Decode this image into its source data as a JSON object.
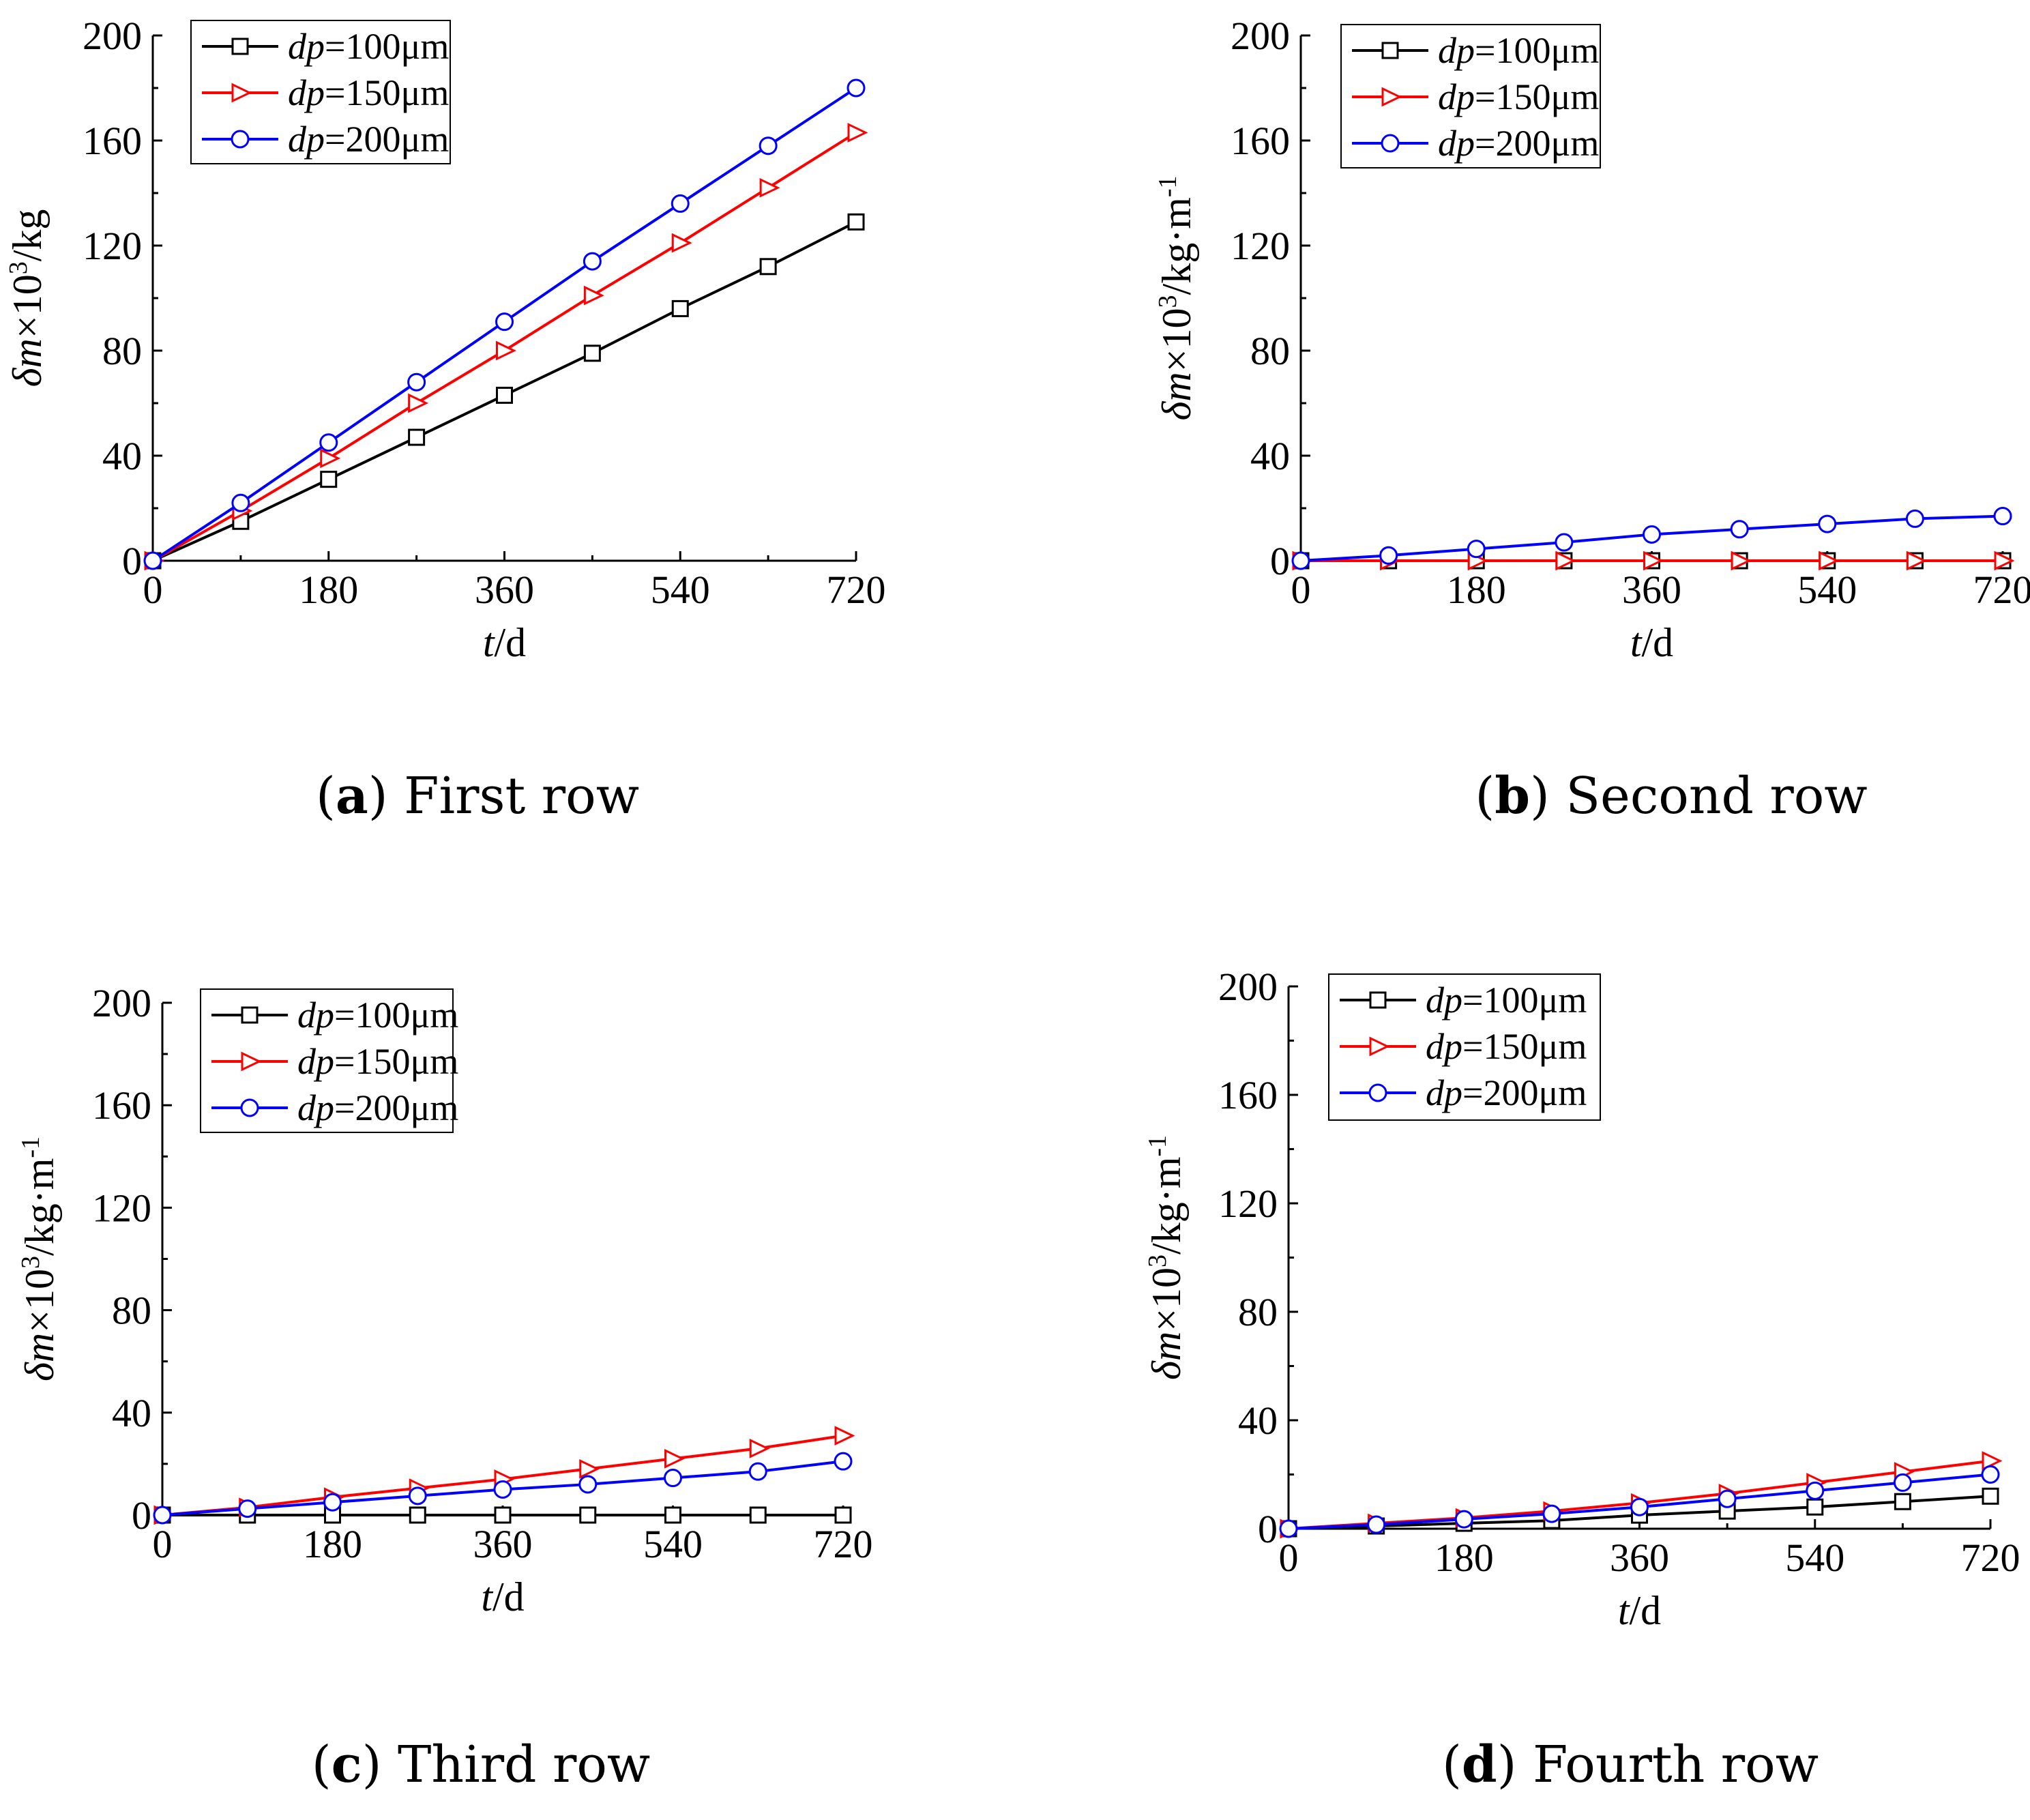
{
  "chart_data": [
    {
      "type": "line",
      "panel": "a",
      "caption_letter": "a",
      "caption_text": ") First row",
      "caption_open": "(",
      "xlabel_italic": "t",
      "xlabel_rest": "/d",
      "ylabel_delta": "δ",
      "ylabel_m": "m",
      "ylabel_times": "×10",
      "ylabel_sup": "3",
      "ylabel_unit": "/kg",
      "ylabel_unit_sup": "",
      "xlim": [
        0,
        720
      ],
      "ylim": [
        0,
        200
      ],
      "xticks": [
        "0",
        "180",
        "360",
        "540",
        "720"
      ],
      "yticks": [
        "0",
        "40",
        "80",
        "120",
        "160",
        "200"
      ],
      "x": [
        0,
        90,
        180,
        270,
        360,
        450,
        540,
        630,
        720
      ],
      "series": [
        {
          "name_italic": "dp",
          "name_rest": "=100μm",
          "color": "#000000",
          "marker": "square",
          "values": [
            0,
            15,
            31,
            47,
            63,
            79,
            96,
            112,
            129
          ]
        },
        {
          "name_italic": "dp",
          "name_rest": "=150μm",
          "color": "#ff0000",
          "marker": "triangle-right",
          "values": [
            0,
            19,
            39,
            60,
            80,
            101,
            121,
            142,
            163
          ]
        },
        {
          "name_italic": "dp",
          "name_rest": "=200μm",
          "color": "#0000ff",
          "marker": "circle",
          "values": [
            0,
            22,
            45,
            68,
            91,
            114,
            136,
            158,
            180
          ]
        }
      ]
    },
    {
      "type": "line",
      "panel": "b",
      "caption_letter": "b",
      "caption_text": ") Second row",
      "caption_open": "(",
      "xlabel_italic": "t",
      "xlabel_rest": "/d",
      "ylabel_delta": "δ",
      "ylabel_m": "m",
      "ylabel_times": "×10",
      "ylabel_sup": "3",
      "ylabel_unit": "/kg·m",
      "ylabel_unit_sup": "-1",
      "xlim": [
        0,
        720
      ],
      "ylim": [
        0,
        200
      ],
      "xticks": [
        "0",
        "180",
        "360",
        "540",
        "720"
      ],
      "yticks": [
        "0",
        "40",
        "80",
        "120",
        "160",
        "200"
      ],
      "x": [
        0,
        90,
        180,
        270,
        360,
        450,
        540,
        630,
        720
      ],
      "series": [
        {
          "name_italic": "dp",
          "name_rest": "=100μm",
          "color": "#000000",
          "marker": "square",
          "values": [
            0,
            0,
            0,
            0,
            0,
            0,
            0,
            0,
            0
          ]
        },
        {
          "name_italic": "dp",
          "name_rest": "=150μm",
          "color": "#ff0000",
          "marker": "triangle-right",
          "values": [
            0,
            0,
            0,
            0,
            0,
            0,
            0,
            0,
            0
          ]
        },
        {
          "name_italic": "dp",
          "name_rest": "=200μm",
          "color": "#0000ff",
          "marker": "circle",
          "values": [
            0,
            2,
            4.5,
            7,
            10,
            12,
            14,
            16,
            17
          ]
        }
      ]
    },
    {
      "type": "line",
      "panel": "c",
      "caption_letter": "c",
      "caption_text": ") Third row",
      "caption_open": "(",
      "xlabel_italic": "t",
      "xlabel_rest": "/d",
      "ylabel_delta": "δ",
      "ylabel_m": "m",
      "ylabel_times": "×10",
      "ylabel_sup": "3",
      "ylabel_unit": "/kg·m",
      "ylabel_unit_sup": "-1",
      "xlim": [
        0,
        720
      ],
      "ylim": [
        0,
        200
      ],
      "xticks": [
        "0",
        "180",
        "360",
        "540",
        "720"
      ],
      "yticks": [
        "0",
        "40",
        "80",
        "120",
        "160",
        "200"
      ],
      "x": [
        0,
        90,
        180,
        270,
        360,
        450,
        540,
        630,
        720
      ],
      "series": [
        {
          "name_italic": "dp",
          "name_rest": "=100μm",
          "color": "#000000",
          "marker": "square",
          "values": [
            0,
            0,
            0,
            0,
            0,
            0,
            0,
            0,
            0
          ]
        },
        {
          "name_italic": "dp",
          "name_rest": "=150μm",
          "color": "#ff0000",
          "marker": "triangle-right",
          "values": [
            0,
            3,
            7,
            10.5,
            14,
            18,
            22,
            26,
            31
          ]
        },
        {
          "name_italic": "dp",
          "name_rest": "=200μm",
          "color": "#0000ff",
          "marker": "circle",
          "values": [
            0,
            2.5,
            5,
            7.5,
            10,
            12,
            14.5,
            17,
            21
          ]
        }
      ]
    },
    {
      "type": "line",
      "panel": "d",
      "caption_letter": "d",
      "caption_text": ") Fourth row",
      "caption_open": "(",
      "xlabel_italic": "t",
      "xlabel_rest": "/d",
      "ylabel_delta": "δ",
      "ylabel_m": "m",
      "ylabel_times": "×10",
      "ylabel_sup": "3",
      "ylabel_unit": "/kg·m",
      "ylabel_unit_sup": "-1",
      "xlim": [
        0,
        720
      ],
      "ylim": [
        0,
        200
      ],
      "xticks": [
        "0",
        "180",
        "360",
        "540",
        "720"
      ],
      "yticks": [
        "0",
        "40",
        "80",
        "120",
        "160",
        "200"
      ],
      "x": [
        0,
        90,
        180,
        270,
        360,
        450,
        540,
        630,
        720
      ],
      "series": [
        {
          "name_italic": "dp",
          "name_rest": "=100μm",
          "color": "#000000",
          "marker": "square",
          "values": [
            0,
            1,
            2,
            3,
            5,
            6.5,
            8,
            10,
            12
          ]
        },
        {
          "name_italic": "dp",
          "name_rest": "=150μm",
          "color": "#ff0000",
          "marker": "triangle-right",
          "values": [
            0,
            2,
            4,
            6.5,
            9.5,
            13,
            17,
            21,
            25
          ]
        },
        {
          "name_italic": "dp",
          "name_rest": "=200μm",
          "color": "#0000ff",
          "marker": "circle",
          "values": [
            0,
            1.5,
            3.5,
            5.5,
            8,
            11,
            14,
            17,
            20
          ]
        }
      ]
    }
  ]
}
